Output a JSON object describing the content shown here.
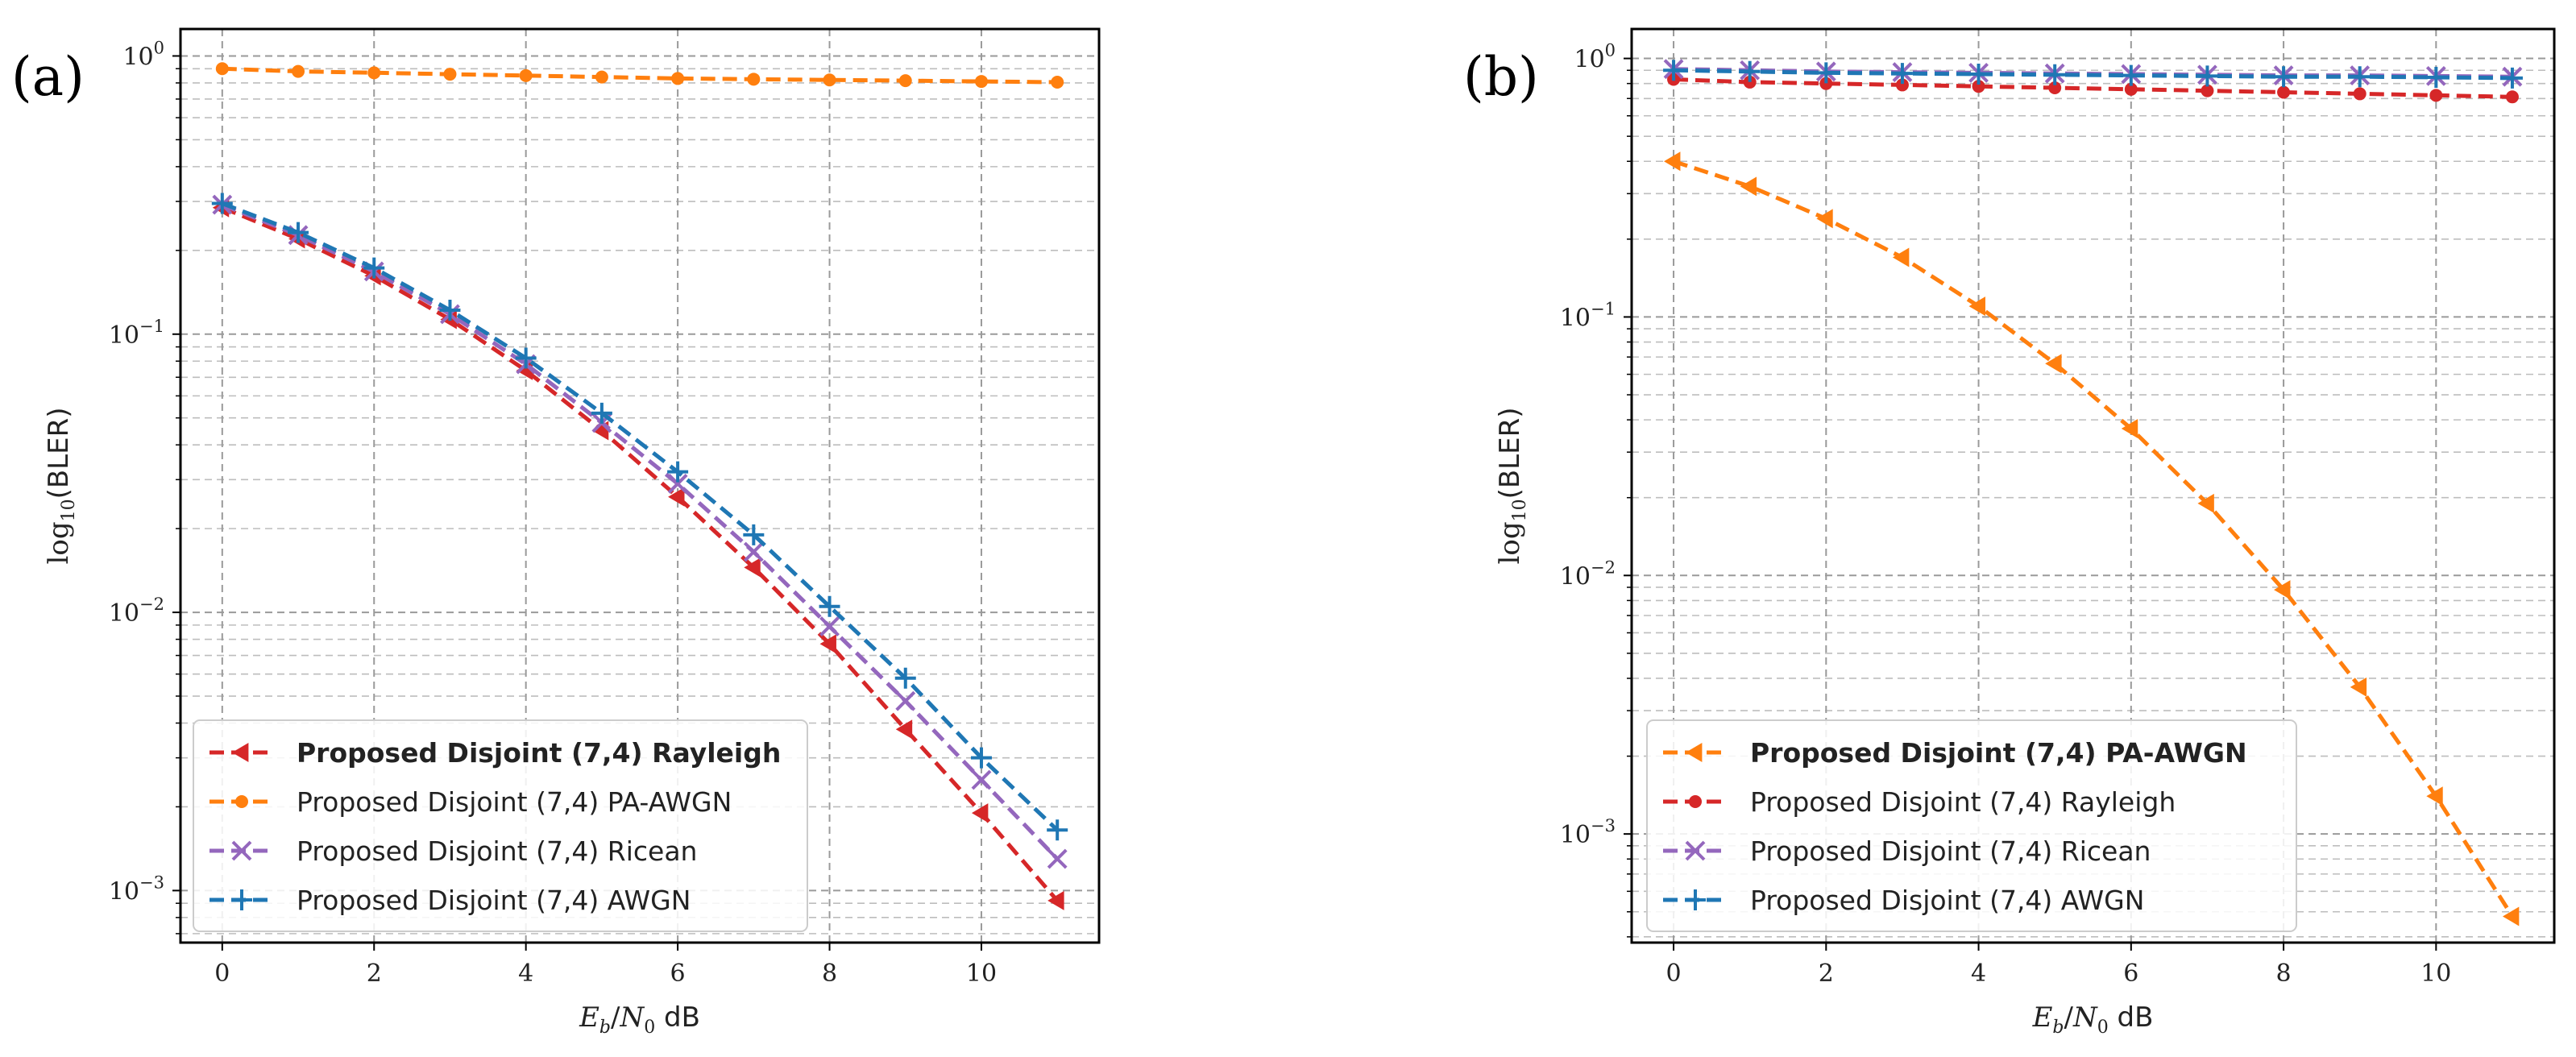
{
  "chart_data": [
    {
      "panel_label": "(a)",
      "type": "line",
      "xlabel": "E_b/N_0 dB",
      "xlabel_parts": {
        "e": "E",
        "e_sub": "b",
        "slash": "/",
        "n": "N",
        "n_sub": "0",
        "unit": " dB"
      },
      "ylabel": "log10(BLER)",
      "ylabel_parts": {
        "fn": "log",
        "fn_sub": "10",
        "arg": "(BLER)"
      },
      "yscale": "log",
      "xlim": [
        -0.55,
        11.55
      ],
      "ylim": [
        0.00065,
        1.25
      ],
      "x_ticks": [
        0,
        2,
        4,
        6,
        8,
        10
      ],
      "x_tick_labels": [
        "0",
        "2",
        "4",
        "6",
        "8",
        "10"
      ],
      "y_ticks": [
        0.001,
        0.01,
        0.1,
        1
      ],
      "y_tick_labels": [
        {
          "base": "10",
          "exp": "−3"
        },
        {
          "base": "10",
          "exp": "−2"
        },
        {
          "base": "10",
          "exp": "−1"
        },
        {
          "base": "10",
          "exp": "0"
        }
      ],
      "grid": true,
      "legend_position": "lower-left",
      "x": [
        0,
        1,
        2,
        3,
        4,
        5,
        6,
        7,
        8,
        9,
        10,
        11
      ],
      "series": [
        {
          "name": "Proposed Disjoint (7,4) Rayleigh",
          "bold": true,
          "color": "#d62728",
          "marker": "triangle-left",
          "values": [
            0.285,
            0.22,
            0.162,
            0.113,
            0.074,
            0.045,
            0.026,
            0.0145,
            0.0077,
            0.0038,
            0.0019,
            0.00092
          ]
        },
        {
          "name": "Proposed Disjoint (7,4) PA-AWGN",
          "bold": false,
          "color": "#ff7f0e",
          "marker": "circle",
          "values": [
            0.9,
            0.88,
            0.87,
            0.86,
            0.85,
            0.84,
            0.83,
            0.825,
            0.82,
            0.815,
            0.81,
            0.805
          ]
        },
        {
          "name": "Proposed Disjoint (7,4) Ricean",
          "bold": false,
          "color": "#9467bd",
          "marker": "x",
          "values": [
            0.292,
            0.227,
            0.168,
            0.118,
            0.078,
            0.048,
            0.029,
            0.0165,
            0.0089,
            0.0048,
            0.0025,
            0.0013
          ]
        },
        {
          "name": "Proposed Disjoint (7,4) AWGN",
          "bold": false,
          "color": "#1f77b4",
          "marker": "plus",
          "values": [
            0.295,
            0.232,
            0.173,
            0.122,
            0.082,
            0.052,
            0.032,
            0.019,
            0.0105,
            0.0058,
            0.003,
            0.00165
          ]
        }
      ]
    },
    {
      "panel_label": "(b)",
      "type": "line",
      "xlabel": "E_b/N_0 dB",
      "xlabel_parts": {
        "e": "E",
        "e_sub": "b",
        "slash": "/",
        "n": "N",
        "n_sub": "0",
        "unit": " dB"
      },
      "ylabel": "log10(BLER)",
      "ylabel_parts": {
        "fn": "log",
        "fn_sub": "10",
        "arg": "(BLER)"
      },
      "yscale": "log",
      "xlim": [
        -0.55,
        11.55
      ],
      "ylim": [
        0.00038,
        1.3
      ],
      "x_ticks": [
        0,
        2,
        4,
        6,
        8,
        10
      ],
      "x_tick_labels": [
        "0",
        "2",
        "4",
        "6",
        "8",
        "10"
      ],
      "y_ticks": [
        0.001,
        0.01,
        0.1,
        1
      ],
      "y_tick_labels": [
        {
          "base": "10",
          "exp": "−3"
        },
        {
          "base": "10",
          "exp": "−2"
        },
        {
          "base": "10",
          "exp": "−1"
        },
        {
          "base": "10",
          "exp": "0"
        }
      ],
      "grid": true,
      "legend_position": "lower-left",
      "x": [
        0,
        1,
        2,
        3,
        4,
        5,
        6,
        7,
        8,
        9,
        10,
        11
      ],
      "series": [
        {
          "name": "Proposed Disjoint (7,4) PA-AWGN",
          "bold": true,
          "color": "#ff7f0e",
          "marker": "triangle-left",
          "values": [
            0.4,
            0.32,
            0.24,
            0.17,
            0.11,
            0.066,
            0.037,
            0.019,
            0.0088,
            0.0037,
            0.0014,
            0.00048
          ]
        },
        {
          "name": "Proposed Disjoint (7,4) Rayleigh",
          "bold": false,
          "color": "#d62728",
          "marker": "circle",
          "values": [
            0.83,
            0.81,
            0.8,
            0.79,
            0.78,
            0.77,
            0.76,
            0.75,
            0.74,
            0.73,
            0.72,
            0.71
          ]
        },
        {
          "name": "Proposed Disjoint (7,4) Ricean",
          "bold": false,
          "color": "#9467bd",
          "marker": "x",
          "values": [
            0.91,
            0.9,
            0.89,
            0.885,
            0.88,
            0.875,
            0.87,
            0.865,
            0.86,
            0.86,
            0.855,
            0.85
          ]
        },
        {
          "name": "Proposed Disjoint (7,4) AWGN",
          "bold": false,
          "color": "#1f77b4",
          "marker": "plus",
          "values": [
            0.9,
            0.89,
            0.88,
            0.875,
            0.87,
            0.865,
            0.86,
            0.855,
            0.85,
            0.85,
            0.845,
            0.84
          ]
        }
      ]
    }
  ]
}
